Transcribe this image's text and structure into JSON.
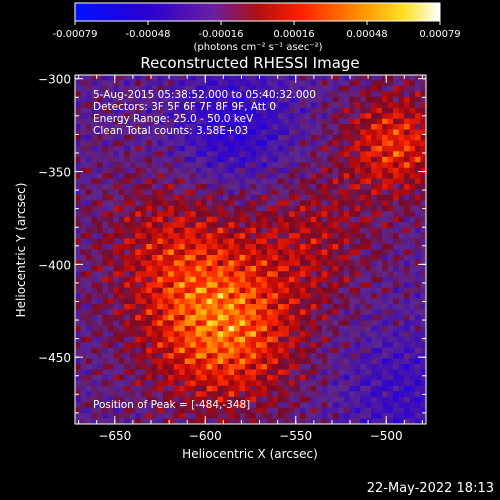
{
  "colorbar": {
    "ticks": [
      "-0.00079",
      "-0.00048",
      "-0.00016",
      "0.00016",
      "0.00048",
      "0.00079"
    ],
    "unit": "(photons cm⁻² s⁻¹ asec⁻²)",
    "range": [
      -0.00079,
      0.00079
    ]
  },
  "chart_data": {
    "type": "heatmap",
    "title": "Reconstructed RHESSI Image",
    "xlabel": "Heliocentric X (arcsec)",
    "ylabel": "Heliocentric Y (arcsec)",
    "xlim": [
      -672,
      -478
    ],
    "ylim": [
      -486,
      -298
    ],
    "xticks": [
      {
        "value": -650,
        "label": "−650"
      },
      {
        "value": -600,
        "label": "−600"
      },
      {
        "value": -550,
        "label": "−550"
      },
      {
        "value": -500,
        "label": "−500"
      }
    ],
    "yticks": [
      {
        "value": -300,
        "label": "−300"
      },
      {
        "value": -350,
        "label": "−350"
      },
      {
        "value": -400,
        "label": "−400"
      },
      {
        "value": -450,
        "label": "−450"
      }
    ],
    "annotations": [
      "5-Aug-2015 05:38:52.000 to 05:40:32.000",
      "Detectors: 3F 5F 6F 7F 8F 9F, Att 0",
      "Energy Range: 25.0 - 50.0 keV",
      "Clean     Total counts: 3.58E+03"
    ],
    "peak_label": "Position of Peak = [-484,-348]",
    "peak": {
      "x": -484,
      "y": -348
    },
    "colormap": "rainbow blue-purple-red-orange-yellow-white"
  },
  "timestamp": "22-May-2022 18:13"
}
